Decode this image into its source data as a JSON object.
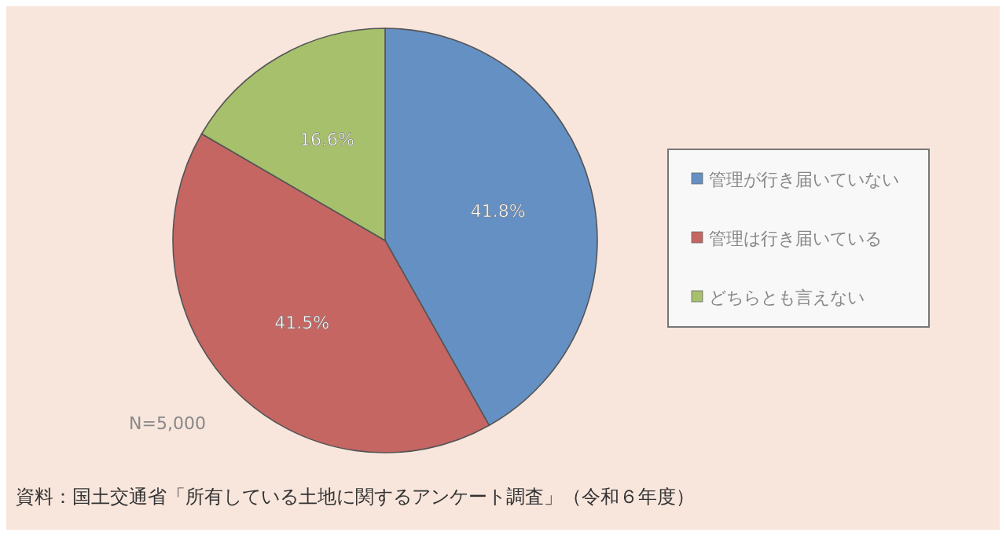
{
  "chart_data": {
    "type": "pie",
    "categories": [
      "管理が行き届いていない",
      "管理は行き届いている",
      "どちらとも言えない"
    ],
    "values": [
      41.8,
      41.5,
      16.6
    ],
    "colors": [
      "#6590c3",
      "#c56663",
      "#a7c06c"
    ],
    "value_labels": [
      "41.8%",
      "41.5%",
      "16.6%"
    ],
    "legend": "right",
    "annotations": [
      "N=5,000",
      "資料：国土交通省「所有している土地に関するアンケート調査」（令和６年度）"
    ]
  }
}
